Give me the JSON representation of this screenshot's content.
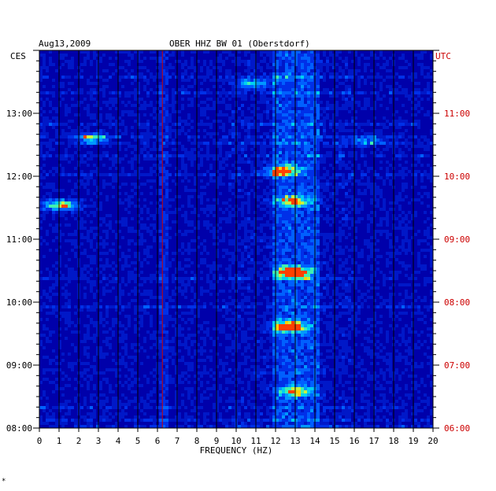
{
  "header": {
    "date": "Aug13,2009",
    "station": "OBER HHZ BW 01 (Oberstdorf)",
    "left_tz": "CES",
    "right_tz": "UTC",
    "footnote": "*"
  },
  "colors": {
    "background": "#0000aa",
    "grid": "#000000",
    "utc": "#cc0000",
    "marker": "#cc0000"
  },
  "chart_data": {
    "type": "heatmap",
    "xlabel": "FREQUENCY (HZ)",
    "xlim": [
      0,
      20
    ],
    "x_ticks": [
      "0",
      "1",
      "2",
      "3",
      "4",
      "5",
      "6",
      "7",
      "8",
      "9",
      "10",
      "11",
      "12",
      "13",
      "14",
      "15",
      "16",
      "17",
      "18",
      "19",
      "20"
    ],
    "time_range_ces": [
      "08:00",
      "14:00"
    ],
    "left_tick_labels": [
      "13:00",
      "12:00",
      "11:00",
      "10:00",
      "09:00",
      "08:00"
    ],
    "right_tick_labels": [
      "11:00",
      "10:00",
      "09:00",
      "08:00",
      "07:00",
      "06:00"
    ],
    "marker_frequency": 6.25,
    "hotspots": [
      {
        "freq": 12.8,
        "time": "10:30",
        "intensity": 1.0
      },
      {
        "freq": 12.6,
        "time": "09:38",
        "intensity": 0.85
      },
      {
        "freq": 12.3,
        "time": "12:07",
        "intensity": 0.7
      },
      {
        "freq": 12.8,
        "time": "11:38",
        "intensity": 0.6
      },
      {
        "freq": 1.0,
        "time": "11:34",
        "intensity": 0.8
      },
      {
        "freq": 2.6,
        "time": "12:38",
        "intensity": 0.6
      },
      {
        "freq": 12.9,
        "time": "08:36",
        "intensity": 0.6
      },
      {
        "freq": 10.8,
        "time": "13:30",
        "intensity": 0.5
      },
      {
        "freq": 16.5,
        "time": "12:35",
        "intensity": 0.45
      }
    ]
  }
}
